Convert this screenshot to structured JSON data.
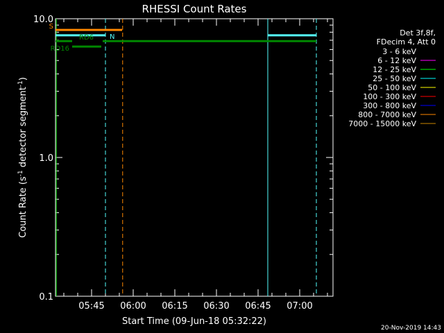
{
  "chart_data": {
    "type": "line",
    "title": "RHESSI Count Rates",
    "xlabel": "Start Time (09-Jun-18 05:32:22)",
    "ylabel_main": "Count Rate (s",
    "ylabel_sup1": "-1",
    "ylabel_mid": " detector segment",
    "ylabel_sup2": "-1",
    "ylabel_end": ")",
    "x_start": "05:32:22",
    "x_range_min": [
      0,
      100
    ],
    "x_ticks_min": [
      13,
      28,
      43,
      58,
      73,
      88
    ],
    "x_tick_labels": [
      "05:45",
      "06:00",
      "06:15",
      "06:30",
      "06:45",
      "07:00"
    ],
    "y_scale": "log",
    "ylim": [
      0.1,
      10.0
    ],
    "y_tick_labels": [
      "10.0",
      "1.0",
      "0.1"
    ],
    "y_tick_values": [
      10,
      1,
      0.1
    ],
    "legend_header": [
      "Det 3f,8f,",
      "FDecim 4, Att 0"
    ],
    "legend": [
      {
        "label": "3 - 6 keV",
        "color": "#000000"
      },
      {
        "label": "6 - 12 keV",
        "color": "#ff00ff"
      },
      {
        "label": "12 - 25 keV",
        "color": "#00ff00"
      },
      {
        "label": "25 - 50 keV",
        "color": "#00ffff"
      },
      {
        "label": "50 - 100 keV",
        "color": "#ffff00"
      },
      {
        "label": "100 - 300 keV",
        "color": "#ff0000"
      },
      {
        "label": "300 - 800 keV",
        "color": "#0000ff"
      },
      {
        "label": "800 - 7000 keV",
        "color": "#ff8800"
      },
      {
        "label": "7000 - 15000 keV",
        "color": "#cc8800"
      }
    ],
    "segments": [
      {
        "label": "S",
        "color": "#ff8800",
        "x": [
          0,
          24
        ],
        "y": 8.3
      },
      {
        "label": "N",
        "color": "#55ffff",
        "x": [
          0,
          18
        ],
        "y": 7.6
      },
      {
        "label": "",
        "color": "#55ffff",
        "x": [
          76.5,
          94
        ],
        "y": 7.6
      },
      {
        "label": "RD6",
        "color": "#008800",
        "x": [
          17,
          94
        ],
        "y": 6.9
      },
      {
        "label": "",
        "color": "#008800",
        "x": [
          0,
          6
        ],
        "y": 6.9
      },
      {
        "label": "RD16",
        "color": "#008800",
        "x": [
          6,
          16.5
        ],
        "y": 6.3
      }
    ],
    "vlines": [
      {
        "x": 0.3,
        "color": "#00cc00",
        "style": "solid"
      },
      {
        "x": 18,
        "color": "#55ffff",
        "style": "dashed"
      },
      {
        "x": 24.2,
        "color": "#ff8800",
        "style": "dashed"
      },
      {
        "x": 76.5,
        "color": "#55ffff",
        "style": "solid"
      },
      {
        "x": 94,
        "color": "#55ffff",
        "style": "dashed"
      }
    ]
  },
  "footer_timestamp": "20-Nov-2019 14:43"
}
